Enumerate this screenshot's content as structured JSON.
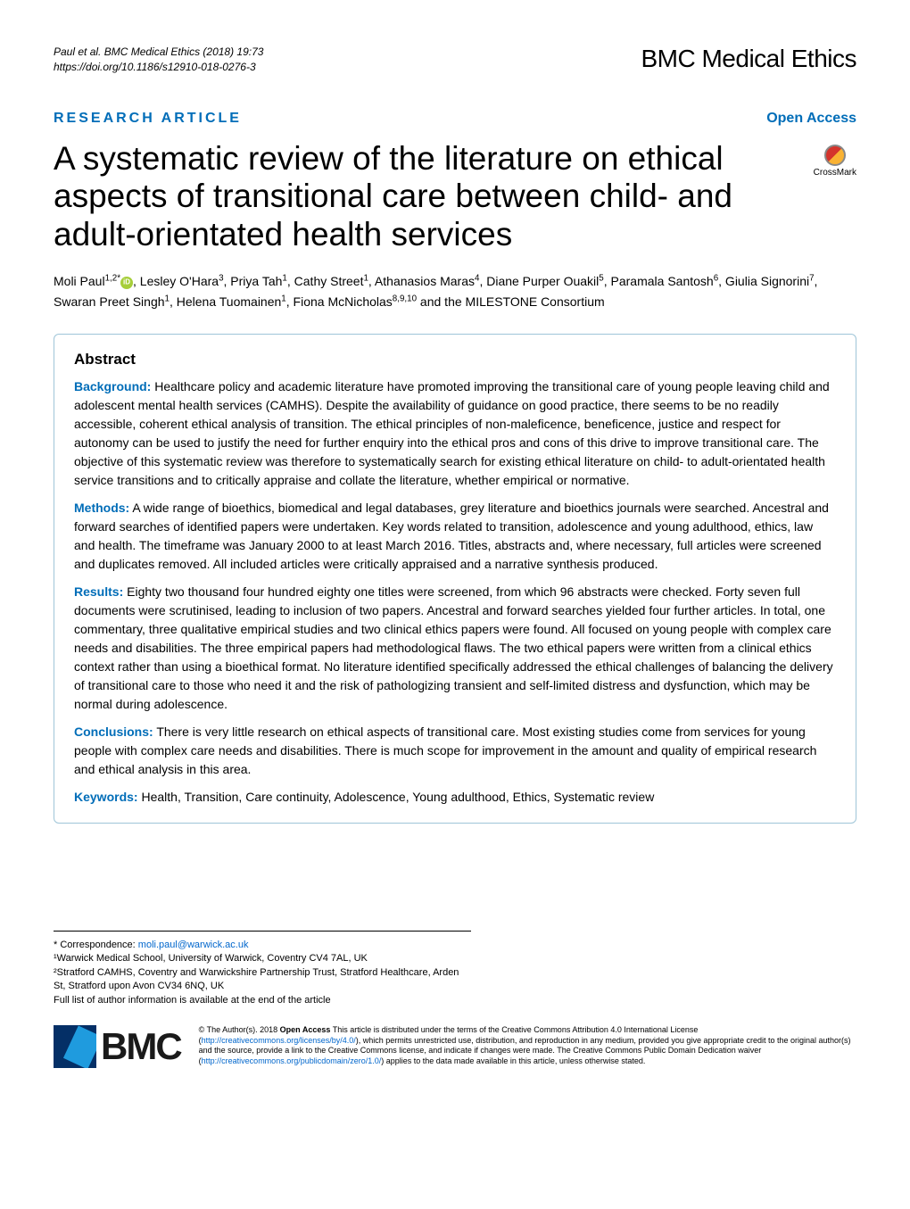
{
  "header": {
    "citation_line1": "Paul et al. BMC Medical Ethics  (2018) 19:73",
    "citation_line2": "https://doi.org/10.1186/s12910-018-0276-3",
    "journal": "BMC Medical Ethics"
  },
  "article_type": "RESEARCH ARTICLE",
  "open_access": "Open Access",
  "crossmark_label": "CrossMark",
  "title": "A systematic review of the literature on ethical aspects of transitional care between child- and adult-orientated health services",
  "authors_html": "Moli Paul<sup>1,2*</sup> [ORCID], Lesley O'Hara<sup>3</sup>, Priya Tah<sup>1</sup>, Cathy Street<sup>1</sup>, Athanasios Maras<sup>4</sup>, Diane Purper Ouakil<sup>5</sup>, Paramala Santosh<sup>6</sup>, Giulia Signorini<sup>7</sup>, Swaran Preet Singh<sup>1</sup>, Helena Tuomainen<sup>1</sup>, Fiona McNicholas<sup>8,9,10</sup> and the MILESTONE Consortium",
  "abstract": {
    "heading": "Abstract",
    "background_label": "Background:",
    "background": "Healthcare policy and academic literature have promoted improving the transitional care of young people leaving child and adolescent mental health services (CAMHS). Despite the availability of guidance on good practice, there seems to be no readily accessible, coherent ethical analysis of transition. The ethical principles of non-maleficence, beneficence, justice and respect for autonomy can be used to justify the need for further enquiry into the ethical pros and cons of this drive to improve transitional care. The objective of this systematic review was therefore to systematically search for existing ethical literature on child- to adult-orientated health service transitions and to critically appraise and collate the literature, whether empirical or normative.",
    "methods_label": "Methods:",
    "methods": "A wide range of bioethics, biomedical and legal databases, grey literature and bioethics journals were searched. Ancestral and forward searches of identified papers were undertaken. Key words related to transition, adolescence and young adulthood, ethics, law and health. The timeframe was January 2000 to at least March 2016. Titles, abstracts and, where necessary, full articles were screened and duplicates removed. All included articles were critically appraised and a narrative synthesis produced.",
    "results_label": "Results:",
    "results": "Eighty two thousand four hundred eighty one titles were screened, from which 96 abstracts were checked. Forty seven full documents were scrutinised, leading to inclusion of two papers. Ancestral and forward searches yielded four further articles. In total, one commentary, three qualitative empirical studies and two clinical ethics papers were found. All focused on young people with complex care needs and disabilities. The three empirical papers had methodological flaws. The two ethical papers were written from a clinical ethics context rather than using a bioethical format. No literature identified specifically addressed the ethical challenges of balancing the delivery of transitional care to those who need it and the risk of pathologizing transient and self-limited distress and dysfunction, which may be normal during adolescence.",
    "conclusions_label": "Conclusions:",
    "conclusions": "There is very little research on ethical aspects of transitional care. Most existing studies come from services for young people with complex care needs and disabilities. There is much scope for improvement in the amount and quality of empirical research and ethical analysis in this area.",
    "keywords_label": "Keywords:",
    "keywords": "Health, Transition, Care continuity, Adolescence, Young adulthood, Ethics, Systematic review"
  },
  "correspondence": {
    "label": "* Correspondence:",
    "email": "moli.paul@warwick.ac.uk",
    "affil1": "¹Warwick Medical School, University of Warwick, Coventry CV4 7AL, UK",
    "affil2": "²Stratford CAMHS, Coventry and Warwickshire Partnership Trust, Stratford Healthcare, Arden St, Stratford upon Avon CV34 6NQ, UK",
    "note": "Full list of author information is available at the end of the article"
  },
  "license": {
    "bmc": "BMC",
    "text_pre": "© The Author(s). 2018 ",
    "open_access_bold": "Open Access",
    "text_main": " This article is distributed under the terms of the Creative Commons Attribution 4.0 International License (",
    "link1": "http://creativecommons.org/licenses/by/4.0/",
    "text_mid": "), which permits unrestricted use, distribution, and reproduction in any medium, provided you give appropriate credit to the original author(s) and the source, provide a link to the Creative Commons license, and indicate if changes were made. The Creative Commons Public Domain Dedication waiver (",
    "link2": "http://creativecommons.org/publicdomain/zero/1.0/",
    "text_end": ") applies to the data made available in this article, unless otherwise stated."
  },
  "colors": {
    "blue": "#006db8",
    "link": "#0066cc",
    "border": "#9fc5d8"
  }
}
